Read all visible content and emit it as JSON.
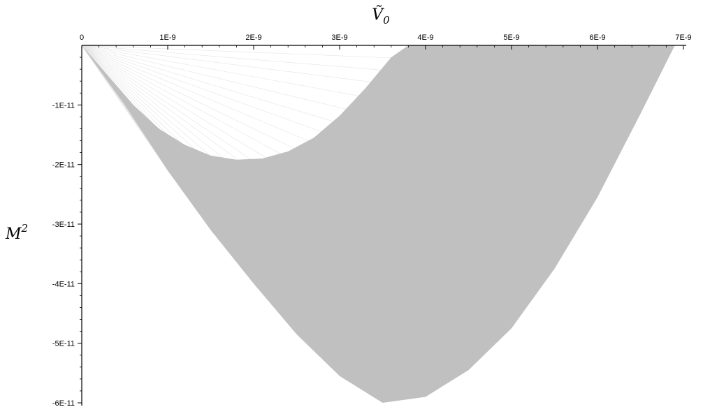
{
  "chart_data": {
    "type": "area",
    "title": "",
    "xlabel": "Ṽ",
    "xlabel_subscript": "0",
    "ylabel": "M",
    "ylabel_superscript": "2",
    "xlim": [
      0,
      7e-09
    ],
    "ylim": [
      -6e-11,
      0
    ],
    "x_ticks": [
      "0",
      "1E-9",
      "2E-9",
      "3E-9",
      "4E-9",
      "5E-9",
      "6E-9",
      "7E-9"
    ],
    "y_ticks": [
      "-1E-11",
      "-2E-11",
      "-3E-11",
      "-4E-11",
      "-5E-11",
      "-6E-11"
    ],
    "x_axis_position": "top",
    "grid": false,
    "fill_color": "#c0c0c0",
    "series": [
      {
        "role": "outer-boundary",
        "x": [
          0,
          5e-10,
          1e-09,
          1.5e-09,
          2e-09,
          2.5e-09,
          3e-09,
          3.5e-09,
          4e-09,
          4.5e-09,
          5e-09,
          5.5e-09,
          6e-09,
          6.5e-09,
          6.9e-09
        ],
        "y": [
          0,
          -1e-11,
          -2.1e-11,
          -3.1e-11,
          -4e-11,
          -4.85e-11,
          -5.55e-11,
          -6e-11,
          -5.9e-11,
          -5.45e-11,
          -4.75e-11,
          -3.75e-11,
          -2.55e-11,
          -1.15e-11,
          0
        ]
      },
      {
        "role": "inner-boundary",
        "x": [
          0,
          3e-10,
          6e-10,
          9e-10,
          1.2e-09,
          1.5e-09,
          1.8e-09,
          2.1e-09,
          2.4e-09,
          2.7e-09,
          3e-09,
          3.3e-09,
          3.6e-09,
          3.8e-09
        ],
        "y": [
          0,
          -5e-12,
          -1e-11,
          -1.4e-11,
          -1.67e-11,
          -1.85e-11,
          -1.92e-11,
          -1.9e-11,
          -1.78e-11,
          -1.55e-11,
          -1.18e-11,
          -7.2e-12,
          -2e-12,
          0
        ]
      }
    ]
  }
}
